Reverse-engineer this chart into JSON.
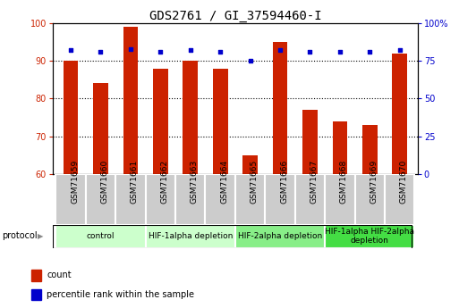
{
  "title": "GDS2761 / GI_37594460-I",
  "samples": [
    "GSM71659",
    "GSM71660",
    "GSM71661",
    "GSM71662",
    "GSM71663",
    "GSM71664",
    "GSM71665",
    "GSM71666",
    "GSM71667",
    "GSM71668",
    "GSM71669",
    "GSM71670"
  ],
  "counts": [
    90,
    84,
    99,
    88,
    90,
    88,
    65,
    95,
    77,
    74,
    73,
    92
  ],
  "percentile_ranks": [
    82,
    81,
    83,
    81,
    82,
    81,
    75,
    82,
    81,
    81,
    81,
    82
  ],
  "ylim_left": [
    60,
    100
  ],
  "ylim_right": [
    0,
    100
  ],
  "yticks_left": [
    60,
    70,
    80,
    90,
    100
  ],
  "yticks_right": [
    0,
    25,
    50,
    75,
    100
  ],
  "ytick_labels_right": [
    "0",
    "25",
    "50",
    "75",
    "100%"
  ],
  "bar_color": "#cc2200",
  "dot_color": "#0000cc",
  "grid_color": "#000000",
  "protocol_groups": [
    {
      "label": "control",
      "start": 0,
      "end": 2,
      "color": "#ccffcc"
    },
    {
      "label": "HIF-1alpha depletion",
      "start": 3,
      "end": 5,
      "color": "#ccffcc"
    },
    {
      "label": "HIF-2alpha depletion",
      "start": 6,
      "end": 8,
      "color": "#88ee88"
    },
    {
      "label": "HIF-1alpha HIF-2alpha\ndepletion",
      "start": 9,
      "end": 11,
      "color": "#44dd44"
    }
  ],
  "legend_items": [
    {
      "label": "count",
      "color": "#cc2200"
    },
    {
      "label": "percentile rank within the sample",
      "color": "#0000cc"
    }
  ],
  "bar_width": 0.5,
  "tick_fontsize": 7,
  "title_fontsize": 10,
  "sample_bg_color": "#cccccc",
  "sample_border_color": "#ffffff"
}
